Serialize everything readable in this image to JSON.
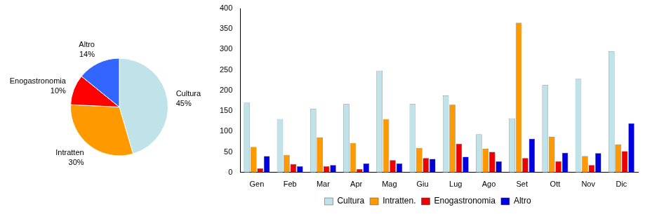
{
  "chart_data": [
    {
      "type": "pie",
      "categories": [
        "Cultura",
        "Intratten",
        "Enogastronomia",
        "Altro"
      ],
      "values": [
        45,
        30,
        10,
        14
      ],
      "value_labels": [
        "45%",
        "30%",
        "10%",
        "14%"
      ],
      "colors": [
        "#bfe3e8",
        "#ff9900",
        "#ff0000",
        "#3366ff"
      ],
      "data_labels": true
    },
    {
      "type": "bar",
      "categories": [
        "Gen",
        "Feb",
        "Mar",
        "Apr",
        "Mag",
        "Giu",
        "Lug",
        "Ago",
        "Set",
        "Ott",
        "Nov",
        "Dic"
      ],
      "series": [
        {
          "name": "Cultura",
          "color": "#bfe3e8",
          "values": [
            170,
            130,
            155,
            167,
            248,
            167,
            188,
            93,
            132,
            213,
            228,
            295
          ]
        },
        {
          "name": "Intratten.",
          "color": "#ff9900",
          "values": [
            62,
            43,
            85,
            72,
            130,
            60,
            165,
            58,
            365,
            87,
            40,
            68
          ]
        },
        {
          "name": "Enogastronomia",
          "color": "#ee0000",
          "values": [
            10,
            20,
            15,
            8,
            30,
            35,
            70,
            50,
            35,
            27,
            18,
            52
          ]
        },
        {
          "name": "Altro",
          "color": "#0000dd",
          "values": [
            40,
            15,
            18,
            22,
            22,
            33,
            38,
            27,
            82,
            48,
            47,
            120
          ]
        }
      ],
      "ylim": [
        0,
        400
      ],
      "yticks": [
        0,
        50,
        100,
        150,
        200,
        250,
        300,
        350,
        400
      ],
      "grid": false,
      "legend": "bottom"
    }
  ]
}
